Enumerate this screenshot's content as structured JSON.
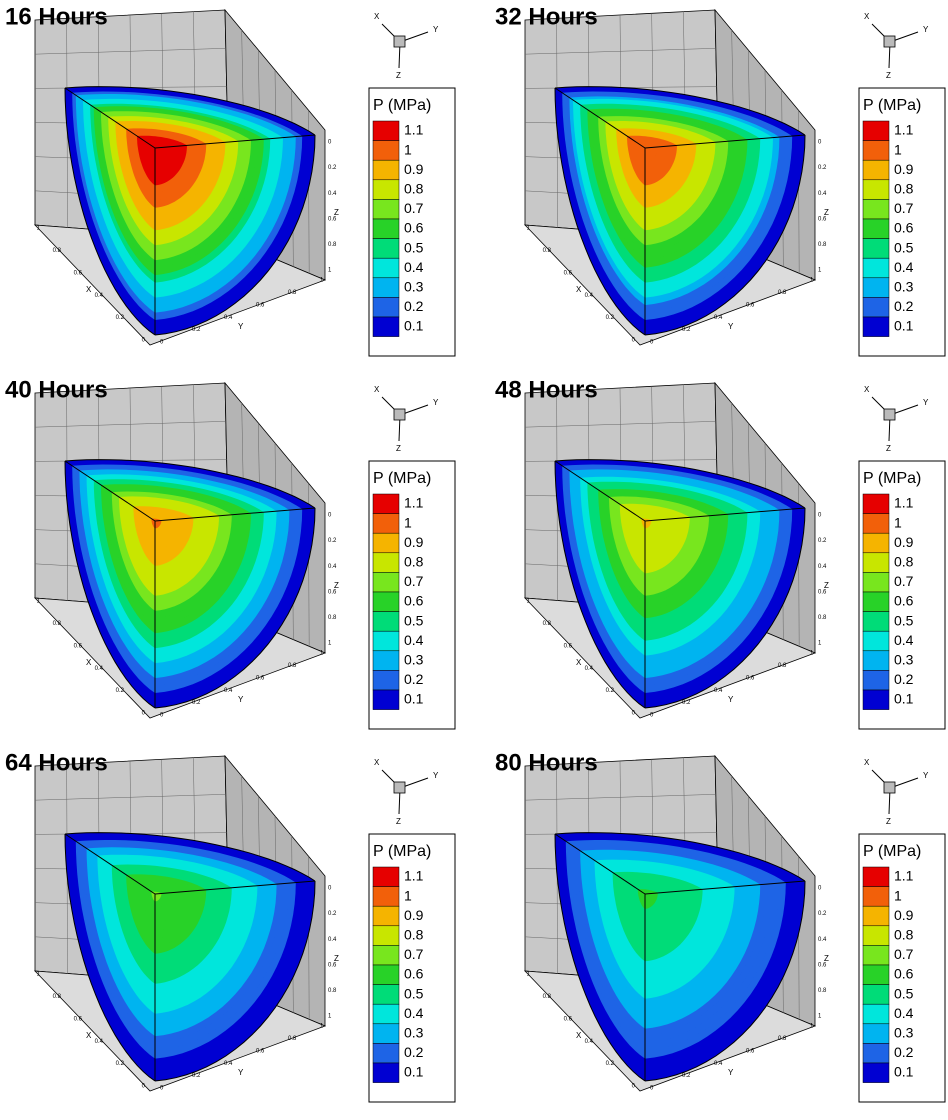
{
  "panels": [
    {
      "title": "16 Hours"
    },
    {
      "title": "32 Hours"
    },
    {
      "title": "40 Hours"
    },
    {
      "title": "48 Hours"
    },
    {
      "title": "64 Hours"
    },
    {
      "title": "80 Hours"
    }
  ],
  "legend": {
    "title": "P (MPa)",
    "levels": [
      {
        "label": "1.1",
        "color": "#e60000"
      },
      {
        "label": "1",
        "color": "#f2600a"
      },
      {
        "label": "0.9",
        "color": "#f5b400"
      },
      {
        "label": "0.8",
        "color": "#c8e600"
      },
      {
        "label": "0.7",
        "color": "#78e61e"
      },
      {
        "label": "0.6",
        "color": "#28d228"
      },
      {
        "label": "0.5",
        "color": "#00dc78"
      },
      {
        "label": "0.4",
        "color": "#00e6dc"
      },
      {
        "label": "0.3",
        "color": "#00b4f0"
      },
      {
        "label": "0.2",
        "color": "#1e64e6"
      },
      {
        "label": "0.1",
        "color": "#0000d2"
      }
    ]
  },
  "axes": {
    "x": {
      "label": "X",
      "ticks": [
        "0",
        "0.2",
        "0.4",
        "0.6",
        "0.8",
        "1"
      ]
    },
    "y": {
      "label": "Y",
      "ticks": [
        "0",
        "0.2",
        "0.4",
        "0.6",
        "0.8",
        "1"
      ]
    },
    "z": {
      "label": "Z",
      "ticks": [
        "0",
        "0.2",
        "0.4",
        "0.6",
        "0.8",
        "1"
      ]
    }
  },
  "triad": {
    "x": "X",
    "y": "Y",
    "z": "Z"
  }
}
